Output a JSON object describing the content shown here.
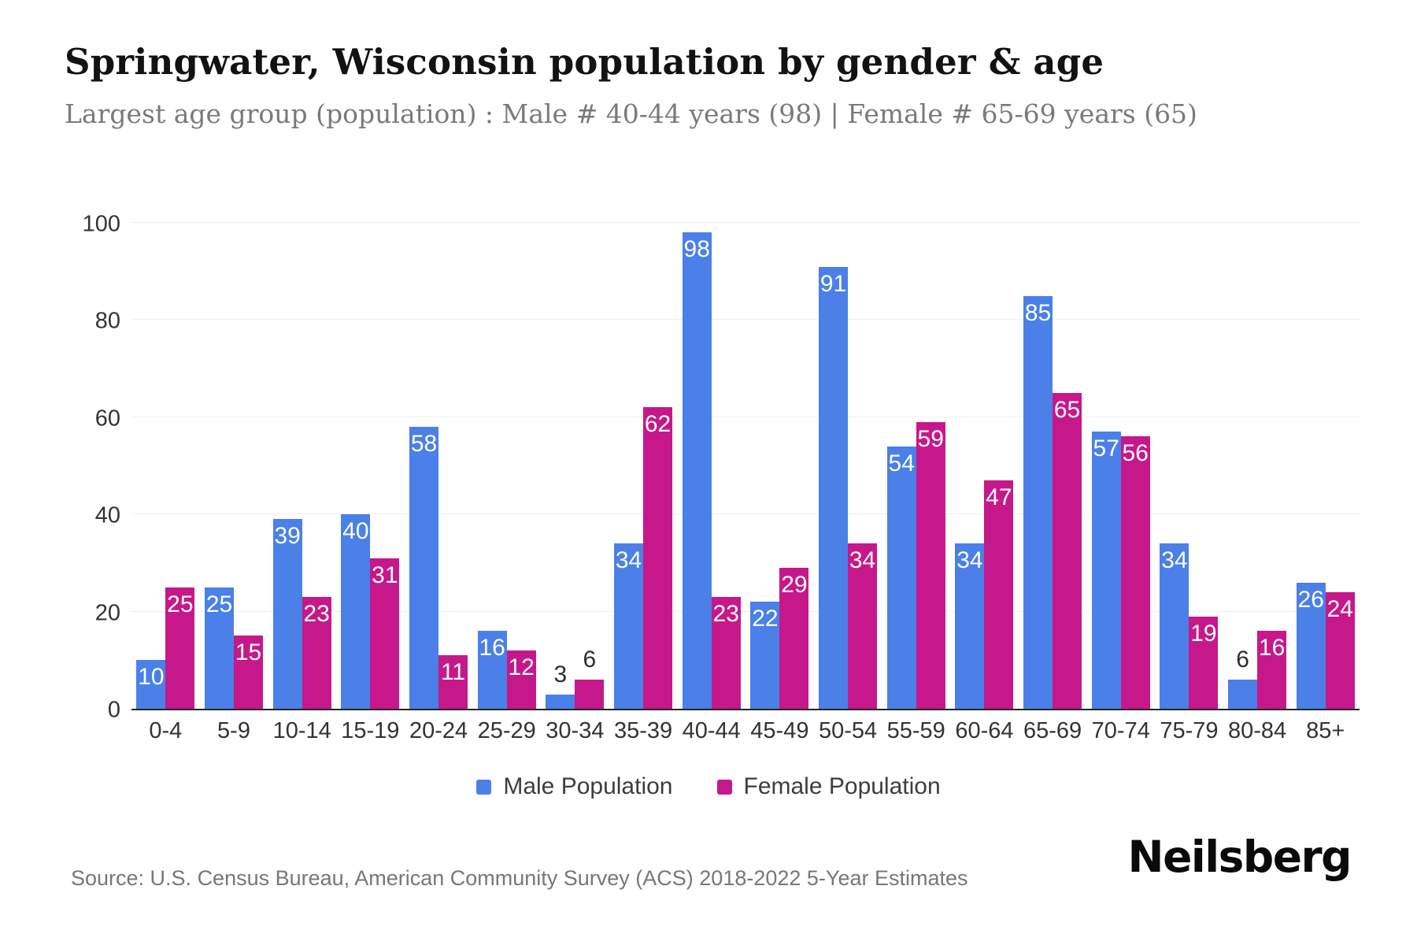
{
  "header": {
    "title": "Springwater, Wisconsin population by gender & age",
    "subtitle": "Largest age group (population) : Male # 40-44 years (98) | Female # 65-69 years (65)"
  },
  "chart_data": {
    "type": "bar",
    "title": "Springwater, Wisconsin population by gender & age",
    "categories": [
      "0-4",
      "5-9",
      "10-14",
      "15-19",
      "20-24",
      "25-29",
      "30-34",
      "35-39",
      "40-44",
      "45-49",
      "50-54",
      "55-59",
      "60-64",
      "65-69",
      "70-74",
      "75-79",
      "80-84",
      "85+"
    ],
    "series": [
      {
        "name": "Male Population",
        "color": "#4a80e8",
        "values": [
          10,
          25,
          39,
          40,
          58,
          16,
          3,
          34,
          98,
          22,
          91,
          54,
          34,
          85,
          57,
          34,
          6,
          26
        ]
      },
      {
        "name": "Female Population",
        "color": "#c6188a",
        "values": [
          25,
          15,
          23,
          31,
          11,
          12,
          6,
          62,
          23,
          29,
          34,
          59,
          47,
          65,
          56,
          19,
          16,
          24
        ]
      }
    ],
    "xlabel": "",
    "ylabel": "",
    "ylim": [
      0,
      100
    ],
    "yticks": [
      0,
      20,
      40,
      60,
      80,
      100
    ],
    "grid": true,
    "legend_position": "bottom",
    "value_labels": true,
    "value_label_color_inside": "#ffffff",
    "value_label_color_outside": "#2e2e2e"
  },
  "footer": {
    "source": "Source: U.S. Census Bureau, American Community Survey (ACS) 2018-2022 5-Year Estimates",
    "brand": "Neilsberg"
  }
}
